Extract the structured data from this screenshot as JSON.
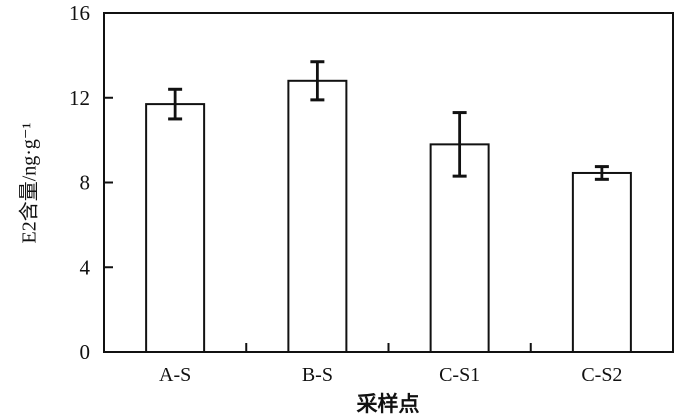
{
  "figure": {
    "background": "#ffffff",
    "ink_color": "#111111",
    "bar_fill": "#ffffff"
  },
  "chart_data": {
    "type": "bar",
    "categories": [
      "A-S",
      "B-S",
      "C-S1",
      "C-S2"
    ],
    "values": [
      11.7,
      12.8,
      9.8,
      8.45
    ],
    "error_bars": [
      0.7,
      0.9,
      1.5,
      0.3
    ],
    "title": "",
    "xlabel": "采样点",
    "ylabel": "E2含量/ng·g⁻¹",
    "ylim": [
      0,
      16
    ],
    "yticks": [
      0,
      4,
      8,
      12,
      16
    ],
    "grid": false,
    "legend": null,
    "bar_edge_color": "#111111",
    "error_bar_color": "#111111"
  }
}
